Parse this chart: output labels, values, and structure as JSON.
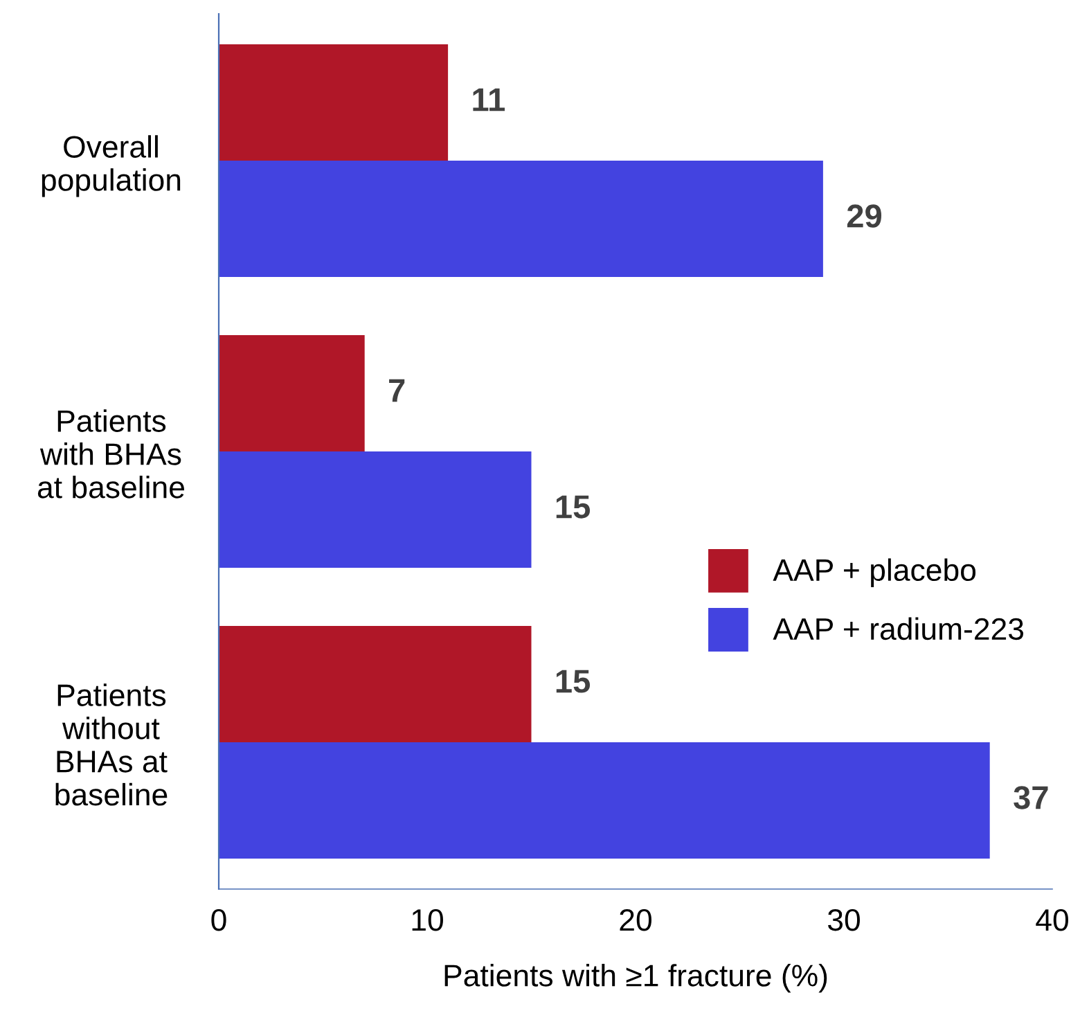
{
  "chart_data": {
    "type": "bar",
    "orientation": "horizontal",
    "xlabel": "Patients with ≥1 fracture (%)",
    "categories": [
      "Overall\npopulation",
      "Patients\nwith BHAs\nat baseline",
      "Patients\nwithout\nBHAs at\nbaseline"
    ],
    "series": [
      {
        "name": "AAP + placebo",
        "color": "#b01728",
        "values": [
          11,
          7,
          15
        ]
      },
      {
        "name": "AAP + radium-223",
        "color": "#4343e0",
        "values": [
          29,
          15,
          37
        ]
      }
    ],
    "xlim": [
      0,
      40
    ],
    "xticks": [
      0,
      10,
      20,
      30,
      40
    ],
    "data_labels": true,
    "legend": "right",
    "grid": false
  }
}
